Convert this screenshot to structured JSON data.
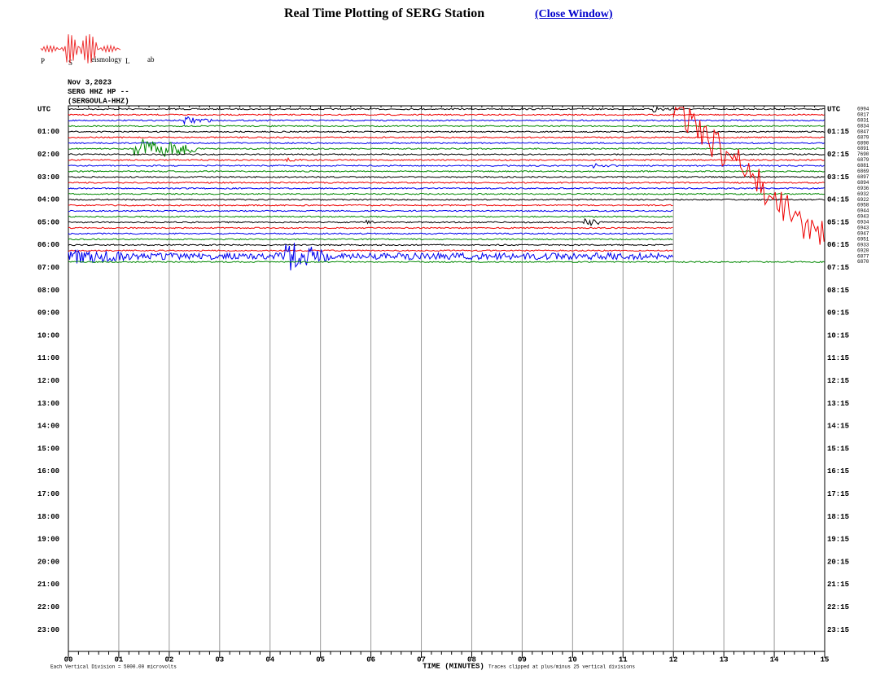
{
  "title": "Real Time Plotting of SERG Station",
  "close_link": "(Close Window)",
  "logo": [
    "P",
    "S",
    "eismology",
    "L",
    "ab"
  ],
  "header": [
    "Nov 3,2023",
    "SERG HHZ HP --",
    "(SERGOULA-HHZ)"
  ],
  "left_labels": [
    "UTC",
    "01:00",
    "02:00",
    "03:00",
    "04:00",
    "05:00",
    "06:00",
    "07:00",
    "08:00",
    "09:00",
    "10:00",
    "11:00",
    "12:00",
    "13:00",
    "14:00",
    "15:00",
    "16:00",
    "17:00",
    "18:00",
    "19:00",
    "20:00",
    "21:00",
    "22:00",
    "23:00"
  ],
  "right_labels": [
    "UTC",
    "01:15",
    "02:15",
    "03:15",
    "04:15",
    "05:15",
    "06:15",
    "07:15",
    "08:15",
    "09:15",
    "10:15",
    "11:15",
    "12:15",
    "13:15",
    "14:15",
    "15:15",
    "16:15",
    "17:15",
    "18:15",
    "19:15",
    "20:15",
    "21:15",
    "22:15",
    "23:15"
  ],
  "trace_numbers": [
    6994,
    6817,
    6831,
    6834,
    6847,
    6879,
    6890,
    6891,
    7690,
    6879,
    6881,
    6869,
    6897,
    6894,
    6936,
    6932,
    6922,
    6958,
    6944,
    6943,
    6934,
    6943,
    6947,
    6951,
    6933,
    6920,
    6877,
    6870
  ],
  "x_labels": [
    "00",
    "01",
    "02",
    "03",
    "04",
    "05",
    "06",
    "07",
    "08",
    "09",
    "10",
    "11",
    "12",
    "13",
    "14",
    "15"
  ],
  "x_axis_title": "TIME (MINUTES)",
  "footer_left": "Each Vertical Division = 5000.00 microvolts",
  "footer_right": "Traces clipped at plus/minus 25 vertical divisions"
}
